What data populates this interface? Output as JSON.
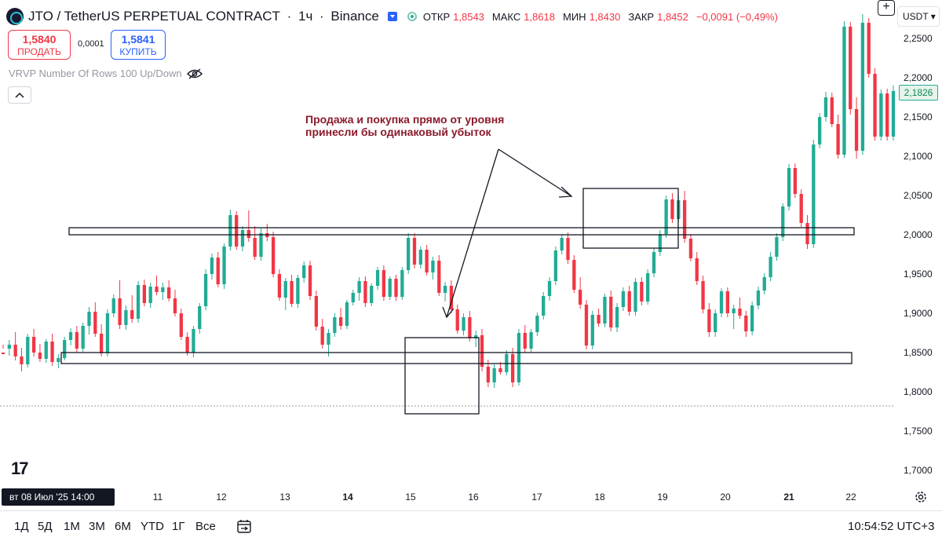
{
  "header": {
    "symbol": "JTO / TetherUS PERPETUAL CONTRACT",
    "interval": "1ч",
    "exchange": "Binance",
    "ohlc": [
      {
        "key": "ОТКР",
        "value": "1,8543"
      },
      {
        "key": "МАКС",
        "value": "1,8618"
      },
      {
        "key": "МИН",
        "value": "1,8430"
      },
      {
        "key": "ЗАКР",
        "value": "1,8452"
      }
    ],
    "change": "−0,0091 (−0,49%)"
  },
  "trade": {
    "sell_price": "1,5840",
    "sell_label": "ПРОДАТЬ",
    "spread": "0,0001",
    "buy_price": "1,5841",
    "buy_label": "КУПИТЬ"
  },
  "indicator": {
    "label": "VRVP Number Of Rows 100 Up/Down"
  },
  "currency": "USDT",
  "annotation": {
    "line1": "Продажа и покупка прямо от уровня",
    "line2": "принесли бы одинаковый убыток"
  },
  "price_axis": {
    "labels": [
      "2,2500",
      "2,2000",
      "2,1500",
      "2,1000",
      "2,0500",
      "2,0000",
      "1,9500",
      "1,9000",
      "1,8500",
      "1,8000",
      "1,7500",
      "1,7000"
    ],
    "current_price": "2,1826"
  },
  "time_axis": {
    "labels": [
      "11",
      "12",
      "13",
      "14",
      "15",
      "16",
      "17",
      "18",
      "19",
      "20",
      "21",
      "22"
    ],
    "bold": [
      "14",
      "21"
    ],
    "cursor_date": "вт 08 Июл '25   14:00"
  },
  "timeframes": [
    "1Д",
    "5Д",
    "1М",
    "3М",
    "6М",
    "YTD",
    "1Г",
    "Все"
  ],
  "clock": "10:54:52 UTC+3",
  "colors": {
    "up": "#22ab94",
    "down": "#f23645",
    "annotation": "#8b1a2b",
    "accent": "#2962ff"
  },
  "icons": [
    "logo-icon",
    "caret-icon",
    "status-dot-icon",
    "eye-off-icon",
    "chevron-up-icon",
    "plus-icon",
    "tradingview-logo-icon",
    "gear-icon",
    "calendar-range-icon"
  ],
  "chart_data": {
    "type": "candlestick",
    "ylim": [
      1.69,
      2.27
    ],
    "x_range": [
      "Jul 8",
      "Jul 22"
    ],
    "levels": [
      2.005,
      1.843
    ],
    "current_price": 2.1826,
    "dotted_line": 1.782,
    "candles_ohlc": [
      [
        1.85,
        1.86,
        1.855,
        1.848
      ],
      [
        1.855,
        1.866,
        1.846,
        1.86
      ],
      [
        1.86,
        1.876,
        1.84,
        1.845
      ],
      [
        1.845,
        1.856,
        1.826,
        1.835
      ],
      [
        1.835,
        1.874,
        1.831,
        1.87
      ],
      [
        1.87,
        1.88,
        1.845,
        1.85
      ],
      [
        1.85,
        1.861,
        1.838,
        1.842
      ],
      [
        1.842,
        1.867,
        1.837,
        1.864
      ],
      [
        1.864,
        1.874,
        1.833,
        1.838
      ],
      [
        1.838,
        1.848,
        1.83,
        1.843
      ],
      [
        1.843,
        1.87,
        1.84,
        1.866
      ],
      [
        1.866,
        1.881,
        1.859,
        1.876
      ],
      [
        1.876,
        1.884,
        1.85,
        1.855
      ],
      [
        1.855,
        1.888,
        1.851,
        1.884
      ],
      [
        1.884,
        1.908,
        1.873,
        1.902
      ],
      [
        1.902,
        1.914,
        1.87,
        1.874
      ],
      [
        1.874,
        1.886,
        1.845,
        1.849
      ],
      [
        1.849,
        1.905,
        1.845,
        1.9
      ],
      [
        1.9,
        1.924,
        1.895,
        1.919
      ],
      [
        1.919,
        1.942,
        1.88,
        1.885
      ],
      [
        1.885,
        1.91,
        1.879,
        1.904
      ],
      [
        1.904,
        1.923,
        1.888,
        1.893
      ],
      [
        1.893,
        1.941,
        1.888,
        1.936
      ],
      [
        1.936,
        1.943,
        1.909,
        1.913
      ],
      [
        1.913,
        1.939,
        1.907,
        1.934
      ],
      [
        1.934,
        1.948,
        1.923,
        1.927
      ],
      [
        1.927,
        1.939,
        1.917,
        1.933
      ],
      [
        1.933,
        1.942,
        1.915,
        1.919
      ],
      [
        1.919,
        1.93,
        1.896,
        1.9
      ],
      [
        1.9,
        1.906,
        1.866,
        1.87
      ],
      [
        1.87,
        1.876,
        1.846,
        1.85
      ],
      [
        1.85,
        1.884,
        1.844,
        1.88
      ],
      [
        1.88,
        1.913,
        1.874,
        1.909
      ],
      [
        1.909,
        1.956,
        1.904,
        1.95
      ],
      [
        1.95,
        1.976,
        1.943,
        1.971
      ],
      [
        1.971,
        1.978,
        1.933,
        1.937
      ],
      [
        1.937,
        1.989,
        1.931,
        1.985
      ],
      [
        1.985,
        2.032,
        1.98,
        2.025
      ],
      [
        2.025,
        2.03,
        1.981,
        1.985
      ],
      [
        1.985,
        2.011,
        1.979,
        2.006
      ],
      [
        2.006,
        2.031,
        1.991,
        1.996
      ],
      [
        1.996,
        2.011,
        1.968,
        1.972
      ],
      [
        1.972,
        2.008,
        1.967,
        2.002
      ],
      [
        2.002,
        2.014,
        1.992,
        1.997
      ],
      [
        1.997,
        2.004,
        1.946,
        1.95
      ],
      [
        1.95,
        1.956,
        1.916,
        1.92
      ],
      [
        1.92,
        1.945,
        1.904,
        1.941
      ],
      [
        1.941,
        1.949,
        1.908,
        1.912
      ],
      [
        1.912,
        1.949,
        1.907,
        1.945
      ],
      [
        1.945,
        1.966,
        1.939,
        1.961
      ],
      [
        1.961,
        1.967,
        1.917,
        1.922
      ],
      [
        1.922,
        1.929,
        1.878,
        1.883
      ],
      [
        1.883,
        1.893,
        1.855,
        1.86
      ],
      [
        1.86,
        1.88,
        1.845,
        1.875
      ],
      [
        1.875,
        1.9,
        1.87,
        1.895
      ],
      [
        1.895,
        1.907,
        1.879,
        1.884
      ],
      [
        1.884,
        1.917,
        1.88,
        1.914
      ],
      [
        1.914,
        1.93,
        1.91,
        1.926
      ],
      [
        1.926,
        1.946,
        1.916,
        1.941
      ],
      [
        1.941,
        1.947,
        1.908,
        1.913
      ],
      [
        1.913,
        1.938,
        1.909,
        1.935
      ],
      [
        1.935,
        1.959,
        1.93,
        1.955
      ],
      [
        1.955,
        1.961,
        1.916,
        1.921
      ],
      [
        1.921,
        1.947,
        1.917,
        1.944
      ],
      [
        1.944,
        1.949,
        1.916,
        1.921
      ],
      [
        1.921,
        1.959,
        1.917,
        1.955
      ],
      [
        1.955,
        2.002,
        1.95,
        1.996
      ],
      [
        1.996,
        2.002,
        1.957,
        1.962
      ],
      [
        1.962,
        1.985,
        1.957,
        1.981
      ],
      [
        1.981,
        1.987,
        1.948,
        1.952
      ],
      [
        1.952,
        1.972,
        1.943,
        1.967
      ],
      [
        1.967,
        1.974,
        1.922,
        1.926
      ],
      [
        1.926,
        1.94,
        1.915,
        1.935
      ],
      [
        1.935,
        1.942,
        1.9,
        1.905
      ],
      [
        1.905,
        1.911,
        1.874,
        1.878
      ],
      [
        1.878,
        1.9,
        1.872,
        1.895
      ],
      [
        1.895,
        1.903,
        1.864,
        1.868
      ],
      [
        1.868,
        1.878,
        1.857,
        1.872
      ],
      [
        1.872,
        1.88,
        1.826,
        1.832
      ],
      [
        1.832,
        1.841,
        1.806,
        1.812
      ],
      [
        1.812,
        1.835,
        1.805,
        1.83
      ],
      [
        1.83,
        1.838,
        1.822,
        1.825
      ],
      [
        1.825,
        1.853,
        1.821,
        1.848
      ],
      [
        1.848,
        1.856,
        1.806,
        1.812
      ],
      [
        1.812,
        1.88,
        1.808,
        1.875
      ],
      [
        1.875,
        1.885,
        1.85,
        1.855
      ],
      [
        1.855,
        1.88,
        1.85,
        1.876
      ],
      [
        1.876,
        1.901,
        1.871,
        1.897
      ],
      [
        1.897,
        1.927,
        1.892,
        1.922
      ],
      [
        1.922,
        1.946,
        1.916,
        1.941
      ],
      [
        1.941,
        1.985,
        1.936,
        1.98
      ],
      [
        1.98,
        2.001,
        1.975,
        1.996
      ],
      [
        1.996,
        2.003,
        1.963,
        1.968
      ],
      [
        1.968,
        1.974,
        1.926,
        1.93
      ],
      [
        1.93,
        1.946,
        1.906,
        1.911
      ],
      [
        1.911,
        1.917,
        1.854,
        1.859
      ],
      [
        1.859,
        1.903,
        1.854,
        1.898
      ],
      [
        1.898,
        1.906,
        1.883,
        1.887
      ],
      [
        1.887,
        1.925,
        1.882,
        1.921
      ],
      [
        1.921,
        1.929,
        1.877,
        1.882
      ],
      [
        1.882,
        1.913,
        1.876,
        1.908
      ],
      [
        1.908,
        1.933,
        1.903,
        1.928
      ],
      [
        1.928,
        1.935,
        1.897,
        1.902
      ],
      [
        1.902,
        1.945,
        1.897,
        1.94
      ],
      [
        1.94,
        1.946,
        1.91,
        1.915
      ],
      [
        1.915,
        1.956,
        1.911,
        1.951
      ],
      [
        1.951,
        1.983,
        1.946,
        1.978
      ],
      [
        1.978,
        2.006,
        1.973,
        2.001
      ],
      [
        2.001,
        2.05,
        1.996,
        2.045
      ],
      [
        2.045,
        2.053,
        2.015,
        2.02
      ],
      [
        2.02,
        2.05,
        2.016,
        2.044
      ],
      [
        2.044,
        2.056,
        1.99,
        1.995
      ],
      [
        1.995,
        2.001,
        1.966,
        1.97
      ],
      [
        1.97,
        1.978,
        1.936,
        1.941
      ],
      [
        1.941,
        1.948,
        1.9,
        1.905
      ],
      [
        1.905,
        1.913,
        1.87,
        1.876
      ],
      [
        1.876,
        1.905,
        1.87,
        1.9
      ],
      [
        1.9,
        1.932,
        1.895,
        1.928
      ],
      [
        1.928,
        1.933,
        1.895,
        1.9
      ],
      [
        1.9,
        1.911,
        1.88,
        1.906
      ],
      [
        1.906,
        1.92,
        1.893,
        1.897
      ],
      [
        1.897,
        1.903,
        1.87,
        1.877
      ],
      [
        1.877,
        1.915,
        1.872,
        1.91
      ],
      [
        1.91,
        1.934,
        1.905,
        1.929
      ],
      [
        1.929,
        1.951,
        1.924,
        1.946
      ],
      [
        1.946,
        1.978,
        1.941,
        1.972
      ],
      [
        1.972,
        2.002,
        1.967,
        1.997
      ],
      [
        1.997,
        2.04,
        1.992,
        2.036
      ],
      [
        2.036,
        2.09,
        2.031,
        2.085
      ],
      [
        2.085,
        2.091,
        2.047,
        2.052
      ],
      [
        2.052,
        2.058,
        2.01,
        2.015
      ],
      [
        2.015,
        2.025,
        1.982,
        1.988
      ],
      [
        1.988,
        2.121,
        1.983,
        2.115
      ],
      [
        2.115,
        2.155,
        2.11,
        2.15
      ],
      [
        2.15,
        2.182,
        2.144,
        2.175
      ],
      [
        2.175,
        2.181,
        2.137,
        2.141
      ],
      [
        2.141,
        2.153,
        2.097,
        2.102
      ],
      [
        2.102,
        2.272,
        2.098,
        2.265
      ],
      [
        2.265,
        2.271,
        2.153,
        2.16
      ],
      [
        2.16,
        2.175,
        2.097,
        2.107
      ],
      [
        2.107,
        2.281,
        2.102,
        2.27
      ],
      [
        2.27,
        2.276,
        2.2,
        2.205
      ],
      [
        2.205,
        2.212,
        2.12,
        2.125
      ],
      [
        2.125,
        2.185,
        2.12,
        2.18
      ],
      [
        2.18,
        2.186,
        2.12,
        2.125
      ],
      [
        2.125,
        2.19,
        2.12,
        2.183
      ]
    ]
  }
}
